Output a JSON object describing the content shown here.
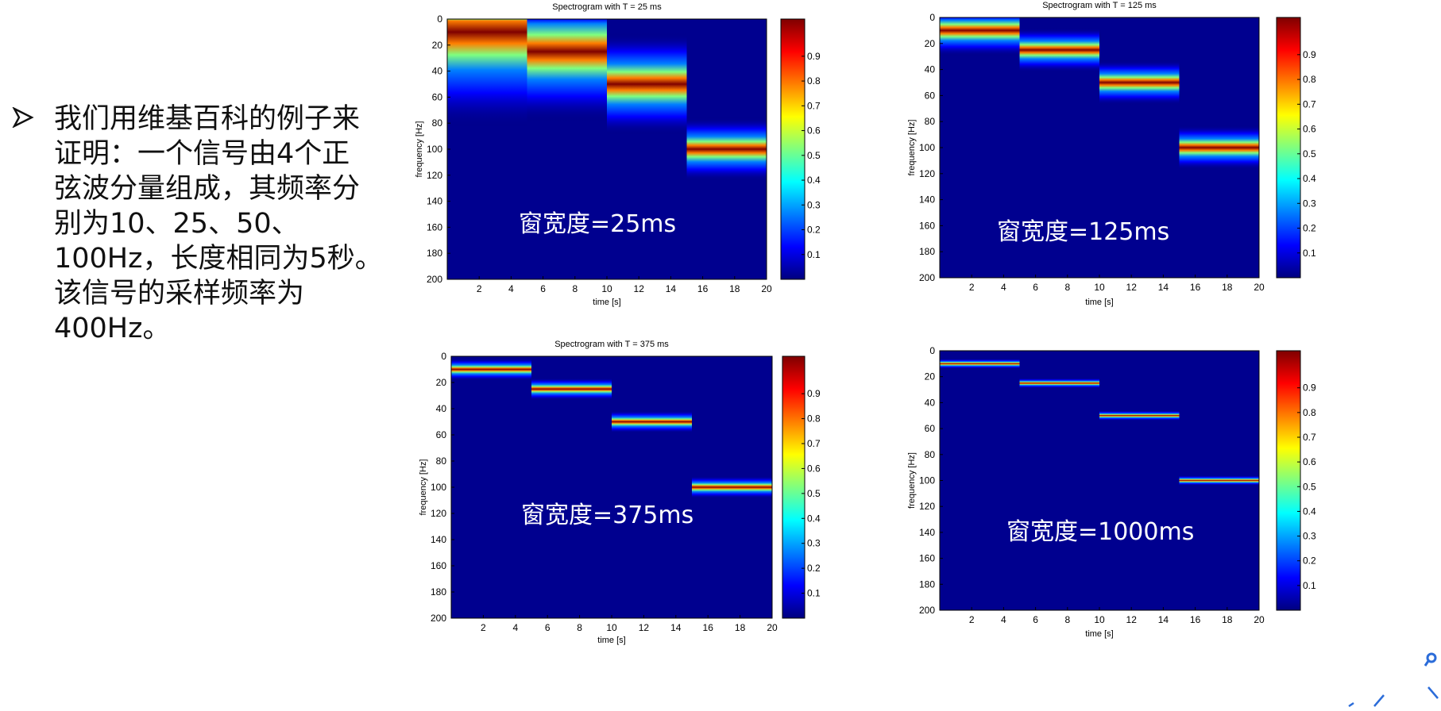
{
  "bullet": {
    "lines": [
      "我们用维基百科的例子来",
      "证明：一个信号由4个正",
      "弦波分量组成，其频率分",
      "别为10、25、50、",
      "100Hz，长度相同为5秒。",
      "该信号的采样频率为",
      "400Hz。"
    ]
  },
  "colorbar_ticks": [
    "0.9",
    "0.8",
    "0.7",
    "0.6",
    "0.5",
    "0.4",
    "0.3",
    "0.2",
    "0.1"
  ],
  "panels": [
    {
      "title": "Spectrogram with T = 25 ms",
      "ylabel": "frequency [Hz]",
      "xlabel": "time [s]",
      "yticks": [
        "0",
        "20",
        "40",
        "60",
        "80",
        "100",
        "120",
        "140",
        "160",
        "180",
        "200"
      ],
      "xticks": [
        "2",
        "4",
        "6",
        "8",
        "10",
        "12",
        "14",
        "16",
        "18",
        "20"
      ],
      "overlay": "窗宽度=25ms",
      "segments": [
        {
          "t_start": 0,
          "t_end": 5,
          "freq_hz": 10
        },
        {
          "t_start": 5,
          "t_end": 10,
          "freq_hz": 25
        },
        {
          "t_start": 10,
          "t_end": 15,
          "freq_hz": 50
        },
        {
          "t_start": 15,
          "t_end": 20,
          "freq_hz": 100
        }
      ]
    },
    {
      "title": "Spectrogram with T = 125 ms",
      "ylabel": "frequency [Hz]",
      "xlabel": "time [s]",
      "yticks": [
        "0",
        "20",
        "40",
        "60",
        "80",
        "100",
        "120",
        "140",
        "160",
        "180",
        "200"
      ],
      "xticks": [
        "2",
        "4",
        "6",
        "8",
        "10",
        "12",
        "14",
        "16",
        "18",
        "20"
      ],
      "overlay": "窗宽度=125ms",
      "segments": [
        {
          "t_start": 0,
          "t_end": 5,
          "freq_hz": 10
        },
        {
          "t_start": 5,
          "t_end": 10,
          "freq_hz": 25
        },
        {
          "t_start": 10,
          "t_end": 15,
          "freq_hz": 50
        },
        {
          "t_start": 15,
          "t_end": 20,
          "freq_hz": 100
        }
      ]
    },
    {
      "title": "Spectrogram with T = 375 ms",
      "ylabel": "frequency [Hz]",
      "xlabel": "time [s]",
      "yticks": [
        "0",
        "20",
        "40",
        "60",
        "80",
        "100",
        "120",
        "140",
        "160",
        "180",
        "200"
      ],
      "xticks": [
        "2",
        "4",
        "6",
        "8",
        "10",
        "12",
        "14",
        "16",
        "18",
        "20"
      ],
      "overlay": "窗宽度=375ms",
      "segments": [
        {
          "t_start": 0,
          "t_end": 5,
          "freq_hz": 10
        },
        {
          "t_start": 5,
          "t_end": 10,
          "freq_hz": 25
        },
        {
          "t_start": 10,
          "t_end": 15,
          "freq_hz": 50
        },
        {
          "t_start": 15,
          "t_end": 20,
          "freq_hz": 100
        }
      ]
    },
    {
      "title": "",
      "ylabel": "frequency [Hz]",
      "xlabel": "time [s]",
      "yticks": [
        "0",
        "20",
        "40",
        "60",
        "80",
        "100",
        "120",
        "140",
        "160",
        "180",
        "200"
      ],
      "xticks": [
        "2",
        "4",
        "6",
        "8",
        "10",
        "12",
        "14",
        "16",
        "18",
        "20"
      ],
      "overlay": "窗宽度=1000ms",
      "segments": [
        {
          "t_start": 0,
          "t_end": 5,
          "freq_hz": 10
        },
        {
          "t_start": 5,
          "t_end": 10,
          "freq_hz": 25
        },
        {
          "t_start": 10,
          "t_end": 15,
          "freq_hz": 50
        },
        {
          "t_start": 15,
          "t_end": 20,
          "freq_hz": 100
        }
      ]
    }
  ],
  "colors": {
    "jet_dark_blue": "#00008f",
    "jet_red": "#c00000",
    "jet_stops": [
      "#00007f",
      "#0000ff",
      "#007fff",
      "#00ffff",
      "#7fff7f",
      "#ffff00",
      "#ff7f00",
      "#ff0000",
      "#7f0000"
    ]
  },
  "icons": [
    "bullet-arrow-icon",
    "zoom-icon",
    "nav-arrows-icon"
  ]
}
